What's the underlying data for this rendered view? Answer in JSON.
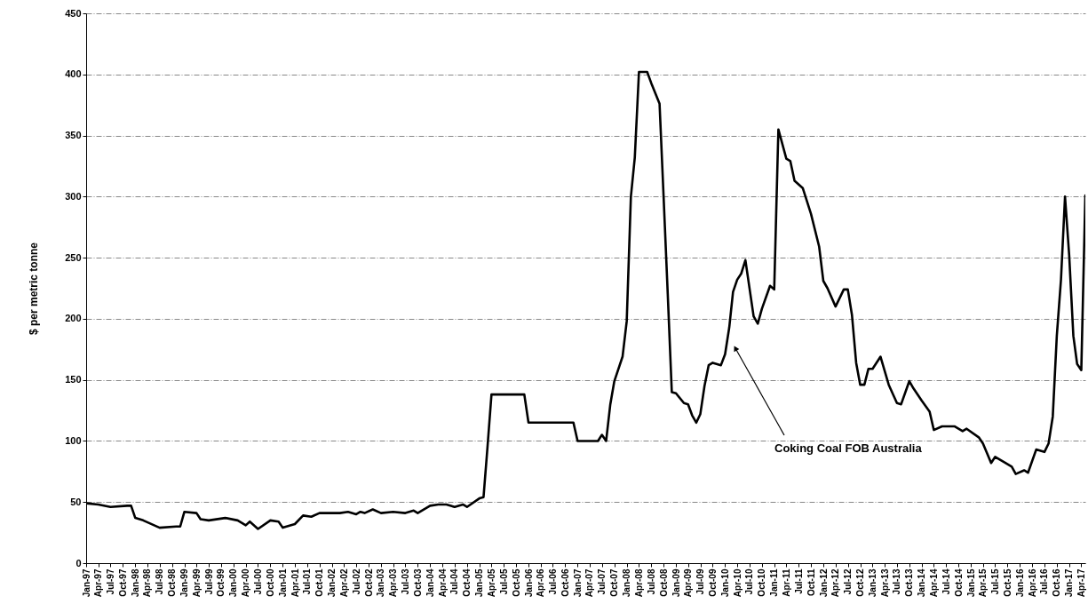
{
  "chart_data": {
    "type": "line",
    "ylabel": "$ per metric tonne",
    "x": [
      "1997-01",
      "1997-04",
      "1997-07",
      "1997-11",
      "1997-12",
      "1998-01",
      "1998-03",
      "1998-07",
      "1998-11",
      "1998-12",
      "1999-01",
      "1999-04",
      "1999-05",
      "1999-07",
      "1999-11",
      "2000-02",
      "2000-04",
      "2000-05",
      "2000-07",
      "2000-10",
      "2000-12",
      "2001-01",
      "2001-04",
      "2001-06",
      "2001-08",
      "2001-10",
      "2002-03",
      "2002-05",
      "2002-07",
      "2002-08",
      "2002-09",
      "2002-11",
      "2003-01",
      "2003-04",
      "2003-07",
      "2003-09",
      "2003-10",
      "2004-01",
      "2004-03",
      "2004-05",
      "2004-07",
      "2004-09",
      "2004-10",
      "2005-01",
      "2005-02",
      "2005-03",
      "2005-04",
      "2005-12",
      "2006-01",
      "2006-12",
      "2007-01",
      "2007-06",
      "2007-07",
      "2007-08",
      "2007-09",
      "2007-10",
      "2007-12",
      "2008-01",
      "2008-02",
      "2008-03",
      "2008-04",
      "2008-06",
      "2008-07",
      "2008-09",
      "2008-10",
      "2008-11",
      "2008-12",
      "2009-01",
      "2009-03",
      "2009-04",
      "2009-05",
      "2009-06",
      "2009-07",
      "2009-08",
      "2009-09",
      "2009-10",
      "2009-12",
      "2010-01",
      "2010-02",
      "2010-03",
      "2010-04",
      "2010-05",
      "2010-06",
      "2010-08",
      "2010-09",
      "2010-10",
      "2010-12",
      "2011-01",
      "2011-02",
      "2011-04",
      "2011-05",
      "2011-06",
      "2011-08",
      "2011-10",
      "2011-12",
      "2012-01",
      "2012-02",
      "2012-04",
      "2012-06",
      "2012-07",
      "2012-08",
      "2012-09",
      "2012-10",
      "2012-11",
      "2012-12",
      "2013-01",
      "2013-03",
      "2013-05",
      "2013-07",
      "2013-08",
      "2013-10",
      "2013-11",
      "2014-01",
      "2014-03",
      "2014-04",
      "2014-06",
      "2014-09",
      "2014-11",
      "2014-12",
      "2015-03",
      "2015-04",
      "2015-06",
      "2015-07",
      "2015-09",
      "2015-11",
      "2015-12",
      "2016-02",
      "2016-03",
      "2016-05",
      "2016-07",
      "2016-08",
      "2016-09",
      "2016-10",
      "2016-11",
      "2016-12",
      "2017-01",
      "2017-02",
      "2017-03",
      "2017-04",
      "2017-05"
    ],
    "series": [
      {
        "color": "#000000",
        "values": [
          49,
          48,
          46,
          47,
          47,
          37,
          35,
          29,
          30,
          30,
          42,
          41,
          36,
          35,
          37,
          35,
          31,
          34,
          28,
          35,
          34,
          29,
          32,
          39,
          38,
          41,
          41,
          42,
          40,
          42,
          41,
          44,
          41,
          42,
          41,
          43,
          41,
          47,
          48,
          48,
          46,
          48,
          46,
          53,
          54,
          93,
          138,
          138,
          115,
          115,
          100,
          100,
          105,
          100,
          130,
          149,
          169,
          198,
          300,
          332,
          402,
          402,
          393,
          376,
          300,
          220,
          140,
          139,
          131,
          130,
          121,
          115,
          122,
          145,
          162,
          164,
          162,
          171,
          193,
          222,
          232,
          237,
          248,
          202,
          196,
          208,
          227,
          224,
          355,
          331,
          329,
          313,
          307,
          286,
          259,
          231,
          225,
          210,
          224,
          224,
          203,
          164,
          146,
          146,
          159,
          159,
          169,
          146,
          131,
          130,
          149,
          143,
          133,
          124,
          109,
          112,
          112,
          108,
          110,
          103,
          98,
          82,
          87,
          83,
          79,
          73,
          76,
          74,
          93,
          91,
          98,
          120,
          186,
          232,
          300,
          252,
          186,
          163,
          158,
          301
        ]
      }
    ],
    "xlim": [
      "1997-01",
      "2017-05"
    ],
    "xticks": [
      {
        "value": "1997-01",
        "label": "Jan-97"
      },
      {
        "value": "1997-04",
        "label": "Apr-97"
      },
      {
        "value": "1997-07",
        "label": "Jul-97"
      },
      {
        "value": "1997-10",
        "label": "Oct-97"
      },
      {
        "value": "1998-01",
        "label": "Jan-98"
      },
      {
        "value": "1998-04",
        "label": "Apr-98"
      },
      {
        "value": "1998-07",
        "label": "Jul-98"
      },
      {
        "value": "1998-10",
        "label": "Oct-98"
      },
      {
        "value": "1999-01",
        "label": "Jan-99"
      },
      {
        "value": "1999-04",
        "label": "Apr-99"
      },
      {
        "value": "1999-07",
        "label": "Jul-99"
      },
      {
        "value": "1999-10",
        "label": "Oct-99"
      },
      {
        "value": "2000-01",
        "label": "Jan-00"
      },
      {
        "value": "2000-04",
        "label": "Apr-00"
      },
      {
        "value": "2000-07",
        "label": "Jul-00"
      },
      {
        "value": "2000-10",
        "label": "Oct-00"
      },
      {
        "value": "2001-01",
        "label": "Jan-01"
      },
      {
        "value": "2001-04",
        "label": "Apr-01"
      },
      {
        "value": "2001-07",
        "label": "Jul-01"
      },
      {
        "value": "2001-10",
        "label": "Oct-01"
      },
      {
        "value": "2002-01",
        "label": "Jan-02"
      },
      {
        "value": "2002-04",
        "label": "Apr-02"
      },
      {
        "value": "2002-07",
        "label": "Jul-02"
      },
      {
        "value": "2002-10",
        "label": "Oct-02"
      },
      {
        "value": "2003-01",
        "label": "Jan-03"
      },
      {
        "value": "2003-04",
        "label": "Apr-03"
      },
      {
        "value": "2003-07",
        "label": "Jul-03"
      },
      {
        "value": "2003-10",
        "label": "Oct-03"
      },
      {
        "value": "2004-01",
        "label": "Jan-04"
      },
      {
        "value": "2004-04",
        "label": "Apr-04"
      },
      {
        "value": "2004-07",
        "label": "Jul-04"
      },
      {
        "value": "2004-10",
        "label": "Oct-04"
      },
      {
        "value": "2005-01",
        "label": "Jan-05"
      },
      {
        "value": "2005-04",
        "label": "Apr-05"
      },
      {
        "value": "2005-07",
        "label": "Jul-05"
      },
      {
        "value": "2005-10",
        "label": "Oct-05"
      },
      {
        "value": "2006-01",
        "label": "Jan-06"
      },
      {
        "value": "2006-04",
        "label": "Apr-06"
      },
      {
        "value": "2006-07",
        "label": "Jul-06"
      },
      {
        "value": "2006-10",
        "label": "Oct-06"
      },
      {
        "value": "2007-01",
        "label": "Jan-07"
      },
      {
        "value": "2007-04",
        "label": "Apr-07"
      },
      {
        "value": "2007-07",
        "label": "Jul-07"
      },
      {
        "value": "2007-10",
        "label": "Oct-07"
      },
      {
        "value": "2008-01",
        "label": "Jan-08"
      },
      {
        "value": "2008-04",
        "label": "Apr-08"
      },
      {
        "value": "2008-07",
        "label": "Jul-08"
      },
      {
        "value": "2008-10",
        "label": "Oct-08"
      },
      {
        "value": "2009-01",
        "label": "Jan-09"
      },
      {
        "value": "2009-04",
        "label": "Apr-09"
      },
      {
        "value": "2009-07",
        "label": "Jul-09"
      },
      {
        "value": "2009-10",
        "label": "Oct-09"
      },
      {
        "value": "2010-01",
        "label": "Jan-10"
      },
      {
        "value": "2010-04",
        "label": "Apr-10"
      },
      {
        "value": "2010-07",
        "label": "Jul-10"
      },
      {
        "value": "2010-10",
        "label": "Oct-10"
      },
      {
        "value": "2011-01",
        "label": "Jan-11"
      },
      {
        "value": "2011-04",
        "label": "Apr-11"
      },
      {
        "value": "2011-07",
        "label": "Jul-11"
      },
      {
        "value": "2011-10",
        "label": "Oct-11"
      },
      {
        "value": "2012-01",
        "label": "Jan-12"
      },
      {
        "value": "2012-04",
        "label": "Apr-12"
      },
      {
        "value": "2012-07",
        "label": "Jul-12"
      },
      {
        "value": "2012-10",
        "label": "Oct-12"
      },
      {
        "value": "2013-01",
        "label": "Jan-13"
      },
      {
        "value": "2013-04",
        "label": "Apr-13"
      },
      {
        "value": "2013-07",
        "label": "Jul-13"
      },
      {
        "value": "2013-10",
        "label": "Oct-13"
      },
      {
        "value": "2014-01",
        "label": "Jan-14"
      },
      {
        "value": "2014-04",
        "label": "Apr-14"
      },
      {
        "value": "2014-07",
        "label": "Jul-14"
      },
      {
        "value": "2014-10",
        "label": "Oct-14"
      },
      {
        "value": "2015-01",
        "label": "Jan-15"
      },
      {
        "value": "2015-04",
        "label": "Apr-15"
      },
      {
        "value": "2015-07",
        "label": "Jul-15"
      },
      {
        "value": "2015-10",
        "label": "Oct-15"
      },
      {
        "value": "2016-01",
        "label": "Jan-16"
      },
      {
        "value": "2016-04",
        "label": "Apr-16"
      },
      {
        "value": "2016-07",
        "label": "Jul-16"
      },
      {
        "value": "2016-10",
        "label": "Oct-16"
      },
      {
        "value": "2017-01",
        "label": "Jan-17"
      },
      {
        "value": "2017-04",
        "label": "Apr-17"
      }
    ],
    "ylim": [
      0,
      450
    ],
    "yticks": [
      0,
      50,
      100,
      150,
      200,
      250,
      300,
      350,
      400,
      450
    ],
    "grid": "y",
    "line_style": "solid",
    "annotations": [
      "Coking Coal FOB Australia"
    ]
  }
}
